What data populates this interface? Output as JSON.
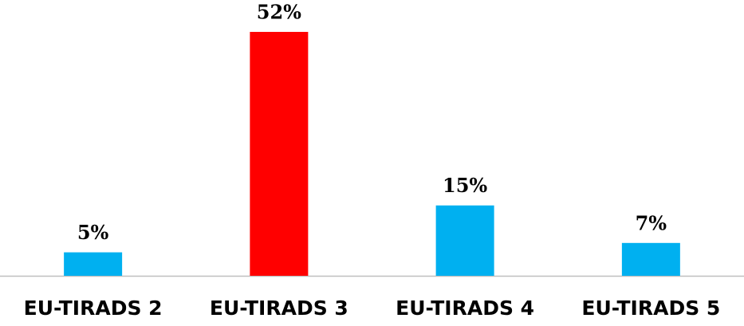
{
  "chart_data": {
    "type": "bar",
    "categories": [
      "EU-TIRADS 2",
      "EU-TIRADS 3",
      "EU-TIRADS 4",
      "EU-TIRADS 5"
    ],
    "values": [
      5,
      52,
      15,
      7
    ],
    "value_labels": [
      "5%",
      "52%",
      "15%",
      "7%"
    ],
    "colors": [
      "#00b0f0",
      "#ff0000",
      "#00b0f0",
      "#00b0f0"
    ]
  }
}
